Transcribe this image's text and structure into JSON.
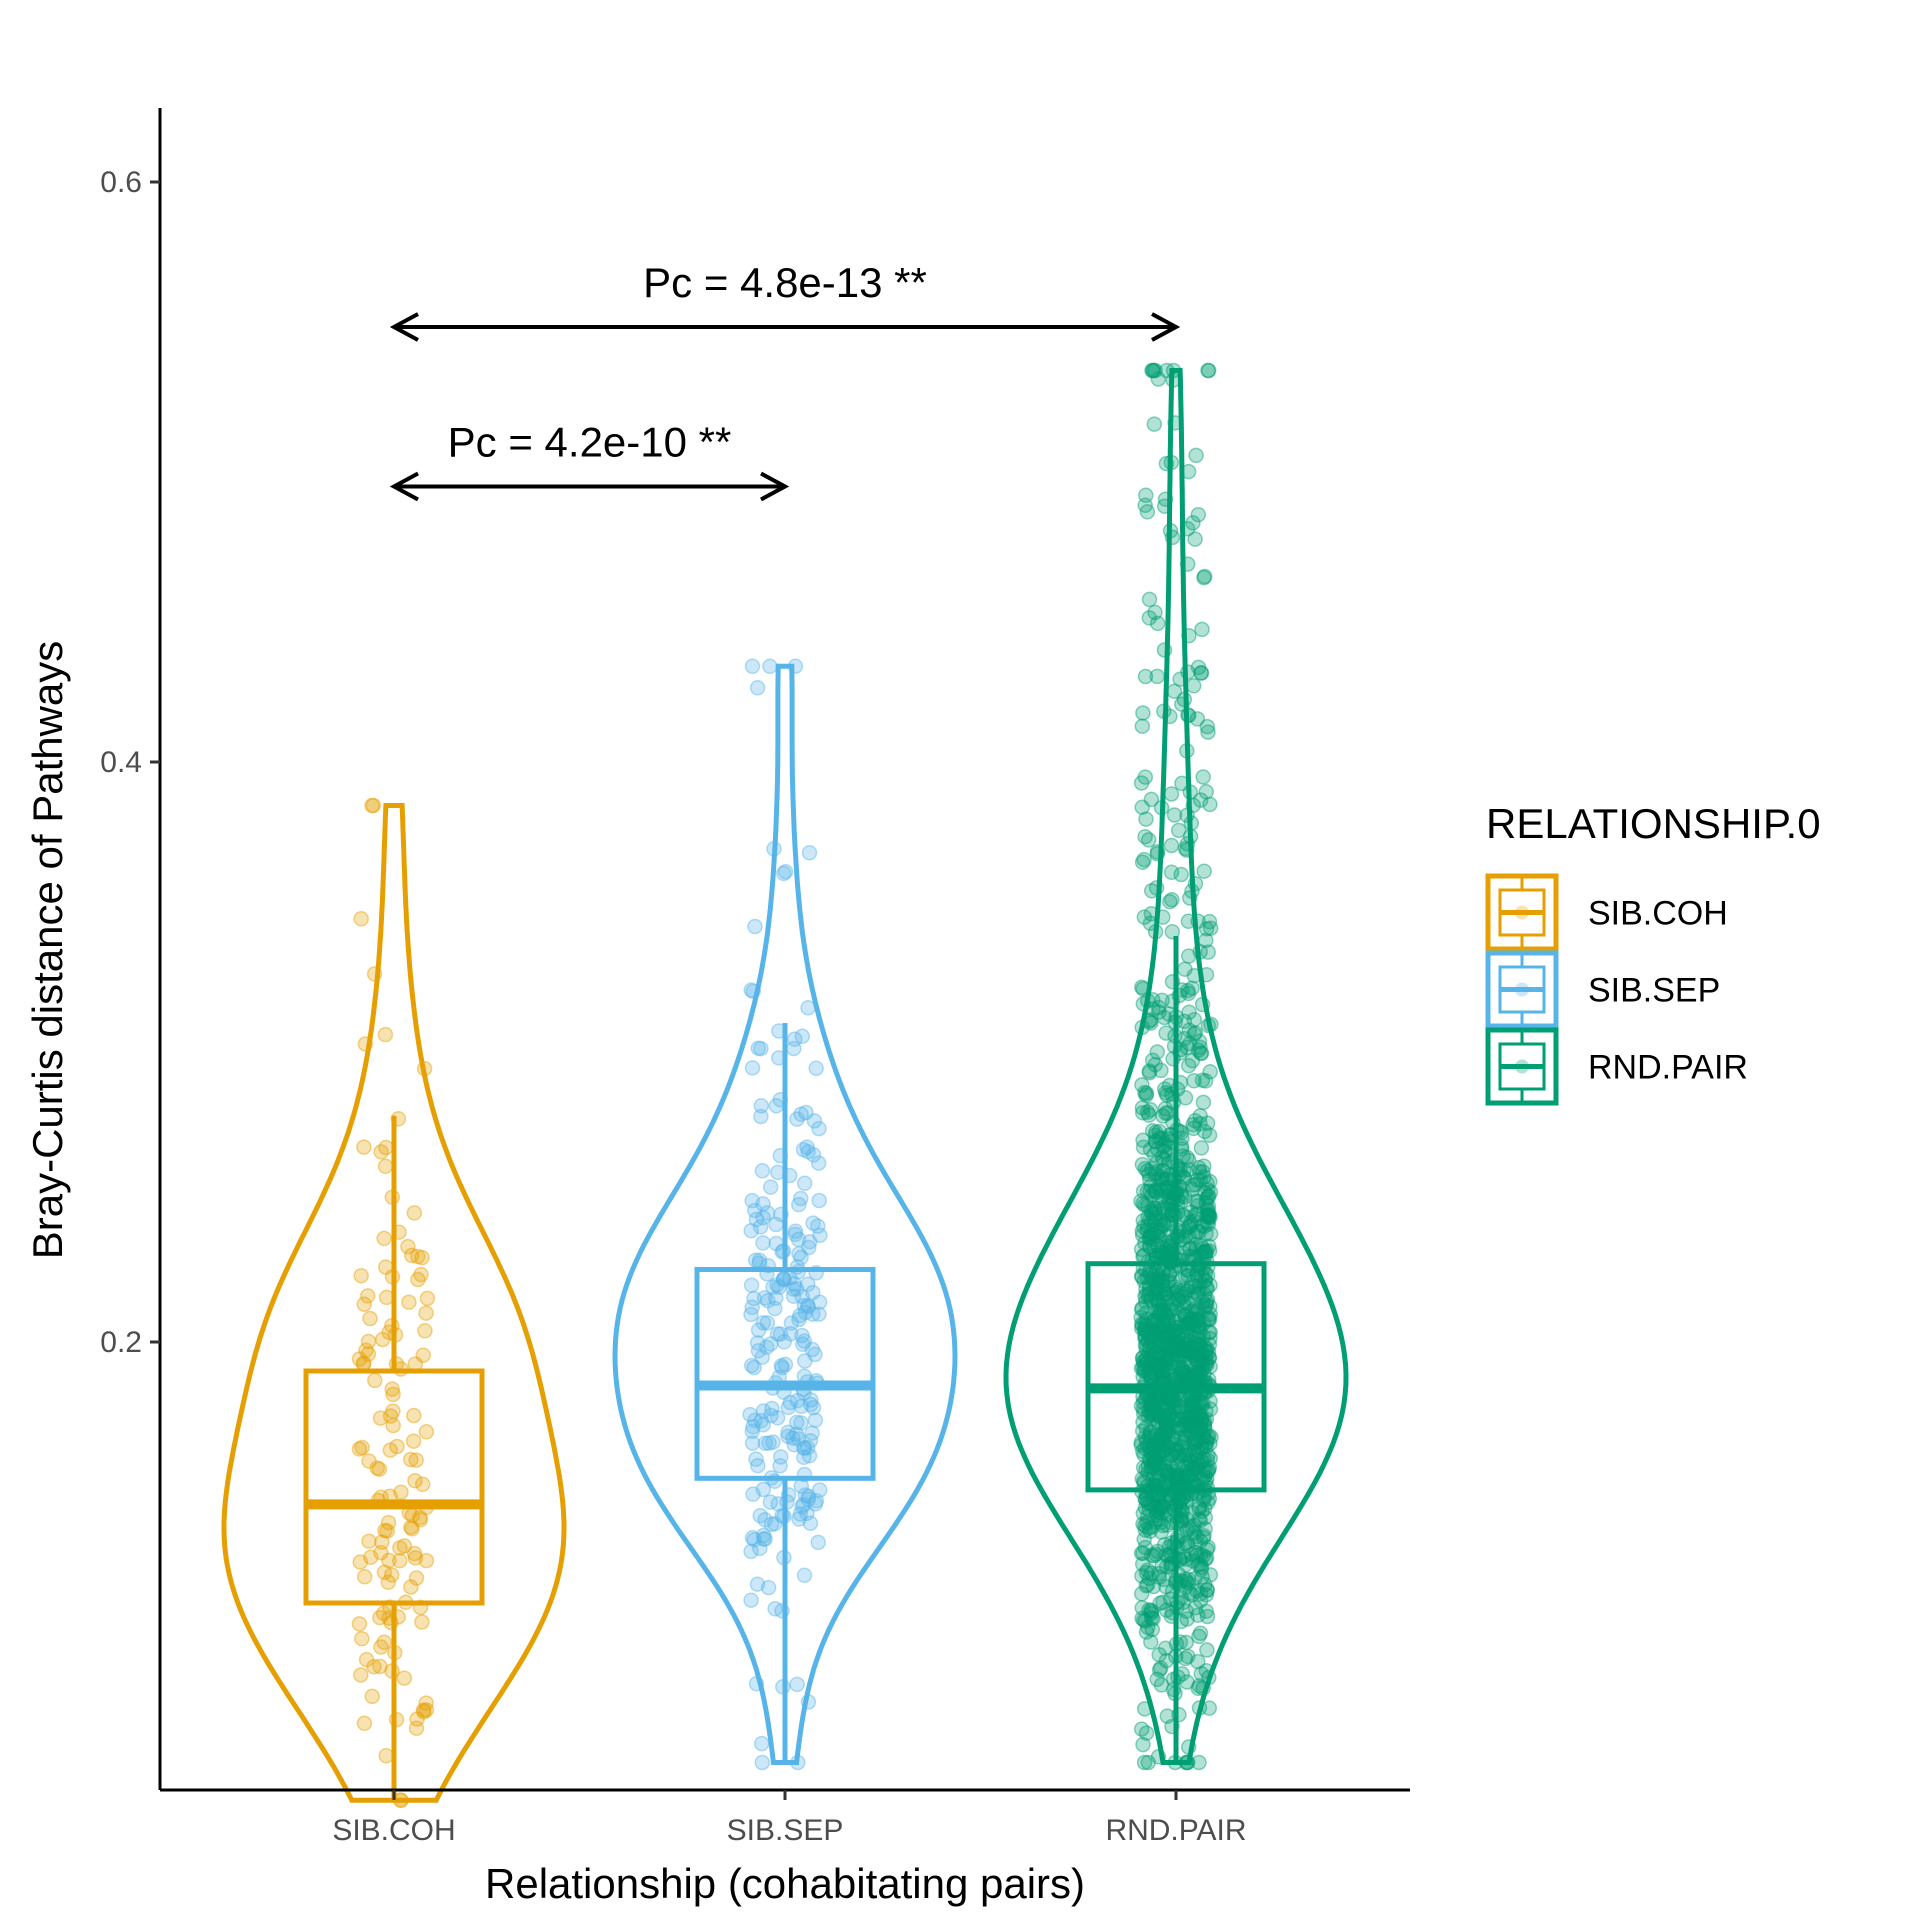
{
  "chart_data": {
    "type": "violin",
    "xlabel": "Relationship (cohabitating pairs)",
    "ylabel": "Bray-Curtis distance of Pathways",
    "ylim": [
      0.03,
      0.625
    ],
    "yticks": [
      0.2,
      0.4,
      0.6
    ],
    "ytick_labels": [
      "0.2",
      "0.4",
      "0.6"
    ],
    "categories": [
      "SIB.COH",
      "SIB.SEP",
      "RND.PAIR"
    ],
    "grid": false,
    "legend": {
      "title": "RELATIONSHIP.0",
      "placement": "right",
      "entries": [
        "SIB.COH",
        "SIB.SEP",
        "RND.PAIR"
      ]
    },
    "series": [
      {
        "name": "SIB.COH",
        "color": "#E69F00",
        "n_points": 130,
        "min": 0.042,
        "max": 0.385,
        "box": {
          "lower_whisker": 0.042,
          "q1": 0.11,
          "median": 0.144,
          "q3": 0.19,
          "upper_whisker": 0.278
        },
        "density_peak": 0.125
      },
      {
        "name": "SIB.SEP",
        "color": "#56B4E9",
        "n_points": 230,
        "min": 0.055,
        "max": 0.433,
        "box": {
          "lower_whisker": 0.055,
          "q1": 0.153,
          "median": 0.185,
          "q3": 0.225,
          "upper_whisker": 0.31
        },
        "density_peak": 0.178
      },
      {
        "name": "RND.PAIR",
        "color": "#009E73",
        "n_points": 1500,
        "min": 0.055,
        "max": 0.535,
        "box": {
          "lower_whisker": 0.055,
          "q1": 0.149,
          "median": 0.184,
          "q3": 0.227,
          "upper_whisker": 0.34
        },
        "density_peak": 0.17
      }
    ],
    "annotations": [
      {
        "text": "Pc = 4.8e-13 **",
        "from": "SIB.COH",
        "to": "RND.PAIR",
        "y": 0.55
      },
      {
        "text": "Pc = 4.2e-10 **",
        "from": "SIB.COH",
        "to": "SIB.SEP",
        "y": 0.495
      }
    ]
  }
}
